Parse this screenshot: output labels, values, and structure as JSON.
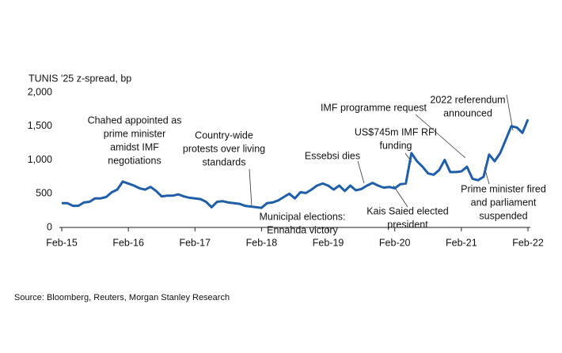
{
  "chart_data": {
    "type": "line",
    "y_label": "TUNIS '25 z-spread, bp",
    "source": "Source: Bloomberg, Reuters, Morgan Stanley Research",
    "xlim": [
      "Feb-15",
      "Feb-22"
    ],
    "xticks": [
      "Feb-15",
      "Feb-16",
      "Feb-17",
      "Feb-18",
      "Feb-19",
      "Feb-20",
      "Feb-21",
      "Feb-22"
    ],
    "ylim": [
      0,
      2000
    ],
    "yticks": [
      0,
      500,
      {
        "value": 1000,
        "label": "1,000"
      },
      {
        "value": 1500,
        "label": "1,500"
      },
      {
        "value": 2000,
        "label": "2,000"
      }
    ],
    "x": [
      "Feb-15",
      "Mar-15",
      "Apr-15",
      "May-15",
      "Jun-15",
      "Jul-15",
      "Aug-15",
      "Sep-15",
      "Oct-15",
      "Nov-15",
      "Dec-15",
      "Jan-16",
      "Feb-16",
      "Mar-16",
      "Apr-16",
      "May-16",
      "Jun-16",
      "Jul-16",
      "Aug-16",
      "Sep-16",
      "Oct-16",
      "Nov-16",
      "Dec-16",
      "Jan-17",
      "Feb-17",
      "Mar-17",
      "Apr-17",
      "May-17",
      "Jun-17",
      "Jul-17",
      "Aug-17",
      "Sep-17",
      "Oct-17",
      "Nov-17",
      "Dec-17",
      "Jan-18",
      "Feb-18",
      "Mar-18",
      "Apr-18",
      "May-18",
      "Jun-18",
      "Jul-18",
      "Aug-18",
      "Sep-18",
      "Oct-18",
      "Nov-18",
      "Dec-18",
      "Jan-19",
      "Feb-19",
      "Mar-19",
      "Apr-19",
      "May-19",
      "Jun-19",
      "Jul-19",
      "Aug-19",
      "Sep-19",
      "Oct-19",
      "Nov-19",
      "Dec-19",
      "Jan-20",
      "Feb-20",
      "Mar-20",
      "Apr-20",
      "May-20",
      "Jun-20",
      "Jul-20",
      "Aug-20",
      "Sep-20",
      "Oct-20",
      "Nov-20",
      "Dec-20",
      "Jan-21",
      "Feb-21",
      "Mar-21",
      "Apr-21",
      "May-21",
      "Jun-21",
      "Jul-21",
      "Aug-21",
      "Sep-21",
      "Oct-21",
      "Nov-21",
      "Dec-21",
      "Jan-22",
      "Feb-22"
    ],
    "series": [
      {
        "name": "TUNIS '25 z-spread",
        "color": "#1f5ea8",
        "values": [
          360,
          360,
          320,
          320,
          370,
          380,
          430,
          430,
          450,
          520,
          560,
          680,
          650,
          620,
          580,
          560,
          600,
          540,
          460,
          470,
          470,
          490,
          460,
          440,
          430,
          420,
          380,
          300,
          380,
          390,
          370,
          360,
          350,
          320,
          310,
          300,
          290,
          360,
          370,
          400,
          450,
          500,
          430,
          520,
          510,
          560,
          620,
          650,
          620,
          560,
          620,
          540,
          620,
          550,
          570,
          620,
          660,
          620,
          590,
          600,
          580,
          640,
          650,
          1100,
          980,
          900,
          800,
          780,
          850,
          1000,
          820,
          820,
          830,
          900,
          720,
          700,
          750,
          1080,
          980,
          1100,
          1300,
          1500,
          1480,
          1400,
          1600
        ]
      }
    ],
    "annotations": [
      [
        "Chahed appointed as",
        "prime minister",
        "amidst IMF",
        "negotiations"
      ],
      [
        "Country-wide",
        "protests over living",
        "standards"
      ],
      [
        "Municipal elections:",
        "Ennahda victory"
      ],
      [
        "Essebsi dies"
      ],
      [
        "US$745m IMF RFI",
        "funding"
      ],
      [
        "IMF programme request"
      ],
      [
        "Kais Saied elected",
        "president"
      ],
      [
        "2022 referendum",
        "announced"
      ],
      [
        "Prime minister fired",
        "and parliament",
        "suspended"
      ]
    ]
  }
}
